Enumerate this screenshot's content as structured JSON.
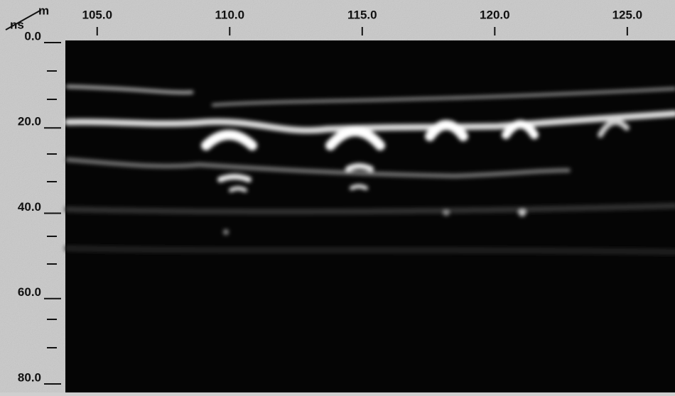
{
  "chart_data": {
    "type": "radargram",
    "x_unit": "m",
    "y_unit": "ns",
    "xlim": [
      103.8,
      126.8
    ],
    "xticks": [
      {
        "value": 105,
        "label": "105.0"
      },
      {
        "value": 110,
        "label": "110.0"
      },
      {
        "value": 115,
        "label": "115.0"
      },
      {
        "value": 120,
        "label": "120.0"
      },
      {
        "value": 125,
        "label": "125.0"
      }
    ],
    "ylim": [
      0,
      82
    ],
    "yticks": [
      {
        "value": 0,
        "label": "0.0"
      },
      {
        "value": 20,
        "label": "20.0"
      },
      {
        "value": 40,
        "label": "40.0"
      },
      {
        "value": 60,
        "label": "60.0"
      },
      {
        "value": 80,
        "label": "80.0"
      }
    ]
  }
}
